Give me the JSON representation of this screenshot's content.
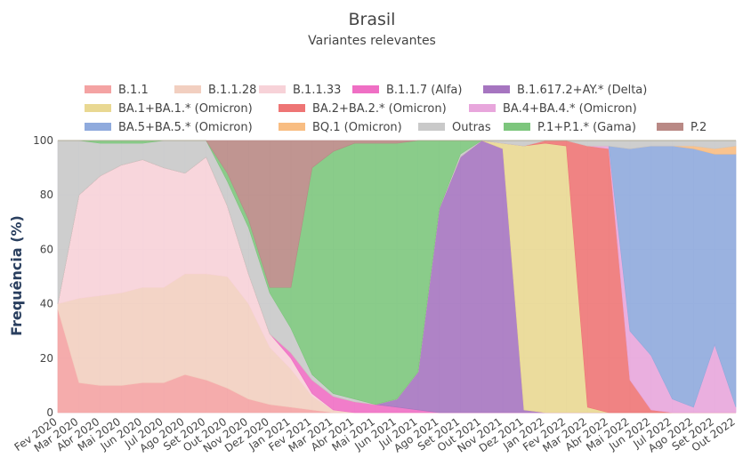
{
  "chart_data": {
    "type": "area",
    "title": "Brasil",
    "subtitle": "Variantes relevantes",
    "xlabel": "",
    "ylabel": "Frequência (%)",
    "ylim": [
      0,
      100
    ],
    "yticks": [
      "0",
      "20",
      "40",
      "60",
      "80",
      "100"
    ],
    "x": [
      "Fev 2020",
      "Mar 2020",
      "Abr 2020",
      "Mai 2020",
      "Jun 2020",
      "Jul 2020",
      "Ago 2020",
      "Set 2020",
      "Out 2020",
      "Nov 2020",
      "Dez 2020",
      "Jan 2021",
      "Fev 2021",
      "Mar 2021",
      "Abr 2021",
      "Mai 2021",
      "Jun 2021",
      "Jul 2021",
      "Ago 2021",
      "Set 2021",
      "Out 2021",
      "Nov 2021",
      "Dez 2021",
      "Jan 2022",
      "Fev 2022",
      "Mar 2022",
      "Abr 2022",
      "Mai 2022",
      "Jun 2022",
      "Jul 2022",
      "Ago 2022",
      "Set 2022",
      "Out 2022"
    ],
    "legend_position": "top",
    "grid": true,
    "series": [
      {
        "name": "B.1.1",
        "color": "#f4a3a3",
        "values": [
          38,
          11,
          10,
          10,
          11,
          11,
          14,
          12,
          9,
          5,
          3,
          2,
          1,
          0,
          0,
          0,
          0,
          0,
          0,
          0,
          0,
          0,
          0,
          0,
          0,
          0,
          0,
          0,
          0,
          0,
          0,
          0,
          0
        ]
      },
      {
        "name": "B.1.1.28",
        "color": "#f2cfc0",
        "values": [
          2,
          31,
          33,
          34,
          35,
          35,
          37,
          39,
          41,
          35,
          21,
          14,
          5,
          1,
          0,
          0,
          0,
          0,
          0,
          0,
          0,
          0,
          0,
          0,
          0,
          0,
          0,
          0,
          0,
          0,
          0,
          0,
          0
        ]
      },
      {
        "name": "B.1.1.33",
        "color": "#f7d2d8",
        "values": [
          0,
          38,
          44,
          47,
          47,
          44,
          37,
          43,
          26,
          11,
          5,
          4,
          1,
          0,
          0,
          0,
          0,
          0,
          0,
          0,
          0,
          0,
          0,
          0,
          0,
          0,
          0,
          0,
          0,
          0,
          0,
          0,
          0
        ]
      },
      {
        "name": "B.1.1.7 (Alfa)",
        "color": "#ef6fc4",
        "values": [
          0,
          0,
          0,
          0,
          0,
          0,
          0,
          0,
          0,
          0,
          0,
          2,
          5,
          5,
          4,
          3,
          2,
          1,
          0,
          0,
          0,
          0,
          0,
          0,
          0,
          0,
          0,
          0,
          0,
          0,
          0,
          0,
          0
        ]
      },
      {
        "name": "B.1.617.2+AY.* (Delta)",
        "color": "#a675c0",
        "values": [
          0,
          0,
          0,
          0,
          0,
          0,
          0,
          0,
          0,
          0,
          0,
          0,
          0,
          0,
          0,
          0,
          3,
          14,
          75,
          94,
          100,
          97,
          1,
          0,
          0,
          0,
          0,
          0,
          0,
          0,
          0,
          0,
          0
        ]
      },
      {
        "name": "BA.1+BA.1.* (Omicron)",
        "color": "#e9d892",
        "values": [
          0,
          0,
          0,
          0,
          0,
          0,
          0,
          0,
          0,
          0,
          0,
          0,
          0,
          0,
          0,
          0,
          0,
          0,
          0,
          0,
          0,
          2,
          97,
          99,
          98,
          2,
          0,
          0,
          0,
          0,
          0,
          0,
          0
        ]
      },
      {
        "name": "BA.2+BA.2.* (Omicron)",
        "color": "#ee7575",
        "values": [
          0,
          0,
          0,
          0,
          0,
          0,
          0,
          0,
          0,
          0,
          0,
          0,
          0,
          0,
          0,
          0,
          0,
          0,
          0,
          0,
          0,
          0,
          0,
          1,
          2,
          96,
          97,
          12,
          1,
          0,
          0,
          0,
          0
        ]
      },
      {
        "name": "BA.4+BA.4.* (Omicron)",
        "color": "#e8a6dc",
        "values": [
          0,
          0,
          0,
          0,
          0,
          0,
          0,
          0,
          0,
          0,
          0,
          0,
          0,
          0,
          0,
          0,
          0,
          0,
          0,
          0,
          0,
          0,
          0,
          0,
          0,
          0,
          1,
          18,
          20,
          5,
          2,
          25,
          2
        ]
      },
      {
        "name": "BA.5+BA.5.* (Omicron)",
        "color": "#8faadd",
        "values": [
          0,
          0,
          0,
          0,
          0,
          0,
          0,
          0,
          0,
          0,
          0,
          0,
          0,
          0,
          0,
          0,
          0,
          0,
          0,
          0,
          0,
          0,
          0,
          0,
          0,
          0,
          0,
          67,
          77,
          93,
          95,
          70,
          93
        ]
      },
      {
        "name": "BQ.1 (Omicron)",
        "color": "#f8bd82",
        "values": [
          0,
          0,
          0,
          0,
          0,
          0,
          0,
          0,
          0,
          0,
          0,
          0,
          0,
          0,
          0,
          0,
          0,
          0,
          0,
          0,
          0,
          0,
          0,
          0,
          0,
          0,
          0,
          0,
          0,
          0,
          1,
          2,
          3
        ]
      },
      {
        "name": "Outras",
        "color": "#c9c9c9",
        "values": [
          60,
          20,
          12,
          8,
          6,
          10,
          12,
          6,
          9,
          17,
          15,
          9,
          2,
          1,
          1,
          0,
          0,
          0,
          0,
          1,
          0,
          1,
          2,
          0,
          0,
          2,
          2,
          3,
          2,
          2,
          2,
          3,
          2
        ]
      },
      {
        "name": "P.1+P.1.* (Gama)",
        "color": "#7dc67d",
        "values": [
          0,
          0,
          1,
          1,
          1,
          0,
          0,
          0,
          3,
          3,
          2,
          15,
          76,
          89,
          94,
          96,
          94,
          85,
          25,
          5,
          0,
          0,
          0,
          0,
          0,
          0,
          0,
          0,
          0,
          0,
          0,
          0,
          0
        ]
      },
      {
        "name": "P.2",
        "color": "#b98985",
        "values": [
          0,
          0,
          0,
          0,
          0,
          0,
          0,
          0,
          12,
          29,
          54,
          54,
          10,
          4,
          1,
          1,
          1,
          0,
          0,
          0,
          0,
          0,
          0,
          0,
          0,
          0,
          0,
          0,
          0,
          0,
          0,
          0,
          0
        ]
      }
    ]
  }
}
